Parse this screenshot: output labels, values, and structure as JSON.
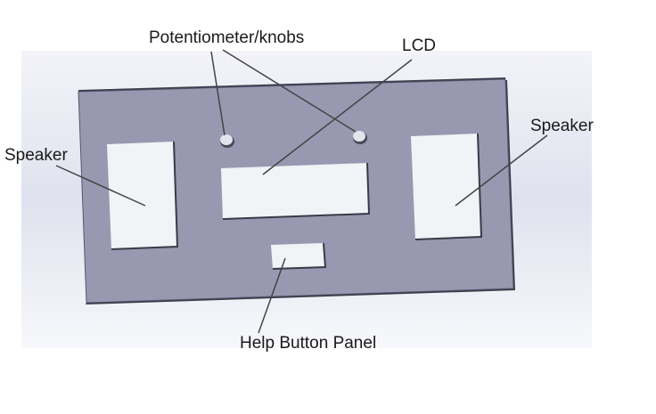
{
  "labels": {
    "potentiometer": "Potentiometer/knobs",
    "lcd": "LCD",
    "speaker_left": "Speaker",
    "speaker_right": "Speaker",
    "help_button_panel": "Help Button Panel"
  },
  "colors": {
    "panel_face": "#9899b1",
    "panel_edge": "#3a3a48",
    "cutout": "#f2f3f7",
    "leader_line": "#444444",
    "label_text": "#1a1a1a"
  }
}
